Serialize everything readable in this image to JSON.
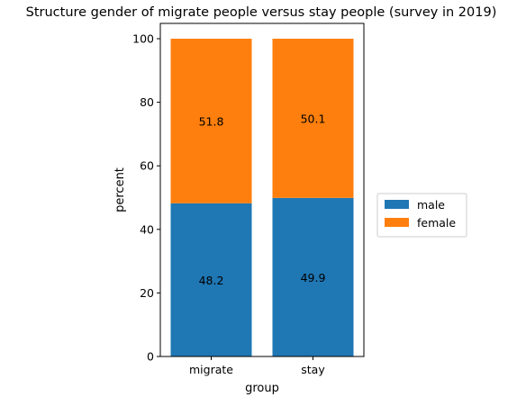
{
  "chart_data": {
    "type": "bar",
    "stacked": true,
    "title": "Structure gender of migrate people versus stay people (survey in 2019)",
    "xlabel": "group",
    "ylabel": "percent",
    "categories": [
      "migrate",
      "stay"
    ],
    "series": [
      {
        "name": "male",
        "color": "#1f77b4",
        "values": [
          48.2,
          49.9
        ],
        "labels": [
          "48.2",
          "49.9"
        ]
      },
      {
        "name": "female",
        "color": "#ff7f0e",
        "values": [
          51.8,
          50.1
        ],
        "labels": [
          "51.8",
          "50.1"
        ]
      }
    ],
    "ylim": [
      0,
      100
    ],
    "yticks": [
      0,
      20,
      40,
      60,
      80,
      100
    ],
    "ytick_labels": [
      "0",
      "20",
      "40",
      "60",
      "80",
      "100"
    ],
    "grid": false,
    "legend_position": "outside-right"
  }
}
